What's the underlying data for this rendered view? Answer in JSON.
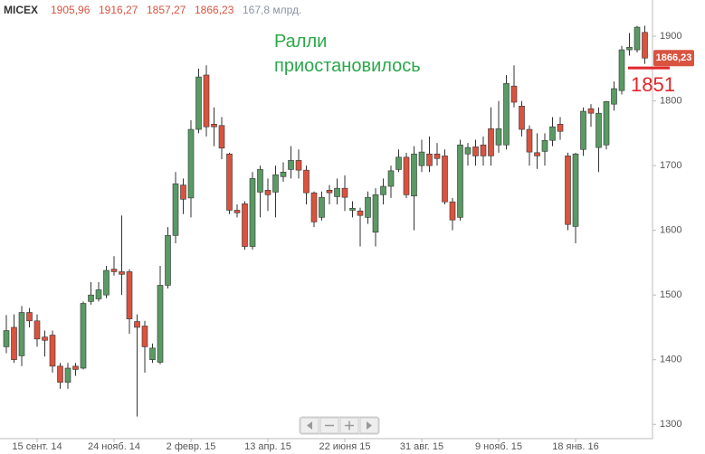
{
  "chart_data": {
    "type": "candlestick",
    "header": {
      "ticker": "MICEX",
      "open": "1905,96",
      "high": "1916,27",
      "low": "1857,27",
      "close": "1866,23",
      "volume": "167,8 млрд."
    },
    "annotation": "Ралли приостановилось",
    "level_line": {
      "value": 1851,
      "color": "#e0262a"
    },
    "last_price": {
      "value": 1866.23,
      "label": "1866,23"
    },
    "up_color": "#5a9a64",
    "down_color": "#d9533f",
    "categories": [
      null,
      null,
      null,
      null,
      "15 сент. 14",
      null,
      null,
      null,
      null,
      null,
      null,
      null,
      null,
      null,
      "24 нояб. 14",
      null,
      null,
      null,
      null,
      null,
      null,
      null,
      null,
      null,
      "2 февр. 15",
      null,
      null,
      null,
      null,
      null,
      null,
      null,
      null,
      null,
      "13 апр. 15",
      null,
      null,
      null,
      null,
      null,
      null,
      null,
      null,
      null,
      "22 июня 15",
      null,
      null,
      null,
      null,
      null,
      null,
      null,
      null,
      null,
      "31 авг. 15",
      null,
      null,
      null,
      null,
      null,
      null,
      null,
      null,
      null,
      "9 нояб. 15",
      null,
      null,
      null,
      null,
      null,
      null,
      null,
      null,
      null,
      "18 янв. 16",
      null,
      null,
      null,
      null,
      null,
      null,
      null,
      null,
      null
    ],
    "open": [
      1420,
      1450,
      1406,
      1473,
      1460,
      1435,
      1438,
      1390,
      1365,
      1390,
      1387,
      1490,
      1494,
      1500,
      1540,
      1536,
      1536,
      1459,
      1452,
      1400,
      1396,
      1515,
      1592,
      1670,
      1650,
      1756,
      1840,
      1764,
      1762,
      1718,
      1631,
      1641,
      1575,
      1659,
      1662,
      1659,
      1683,
      1694,
      1708,
      1693,
      1658,
      1620,
      1662,
      1652,
      1665,
      1631,
      1630,
      1620,
      1597,
      1655,
      1668,
      1694,
      1713,
      1653,
      1700,
      1718,
      1718,
      1715,
      1644,
      1620,
      1718,
      1729,
      1732,
      1757,
      1732,
      1732,
      1823,
      1792,
      1756,
      1720,
      1722,
      1739,
      1764,
      1715,
      1606,
      1725,
      1788,
      1728,
      1732,
      1795,
      1816,
      1879,
      1879,
      1905.96
    ],
    "high": [
      1469,
      1470,
      1483,
      1480,
      1470,
      1445,
      1445,
      1395,
      1395,
      1395,
      1490,
      1520,
      1520,
      1545,
      1560,
      1623,
      1540,
      1470,
      1460,
      1425,
      1545,
      1605,
      1690,
      1680,
      1770,
      1850,
      1855,
      1790,
      1775,
      1720,
      1640,
      1645,
      1690,
      1700,
      1680,
      1700,
      1705,
      1730,
      1725,
      1700,
      1660,
      1660,
      1670,
      1680,
      1685,
      1645,
      1635,
      1660,
      1665,
      1680,
      1700,
      1725,
      1720,
      1730,
      1740,
      1745,
      1735,
      1725,
      1650,
      1740,
      1735,
      1740,
      1745,
      1790,
      1800,
      1840,
      1855,
      1800,
      1762,
      1750,
      1750,
      1775,
      1775,
      1720,
      1720,
      1790,
      1795,
      1790,
      1800,
      1830,
      1885,
      1905,
      1916,
      1916.27
    ],
    "low": [
      1410,
      1395,
      1390,
      1450,
      1420,
      1405,
      1380,
      1355,
      1355,
      1375,
      1385,
      1485,
      1490,
      1495,
      1530,
      1500,
      1440,
      1312,
      1380,
      1395,
      1393,
      1510,
      1580,
      1625,
      1620,
      1750,
      1745,
      1730,
      1710,
      1625,
      1620,
      1570,
      1570,
      1620,
      1630,
      1620,
      1675,
      1680,
      1680,
      1640,
      1605,
      1615,
      1640,
      1640,
      1630,
      1620,
      1575,
      1610,
      1575,
      1640,
      1650,
      1690,
      1650,
      1600,
      1690,
      1690,
      1700,
      1640,
      1600,
      1615,
      1700,
      1700,
      1700,
      1700,
      1720,
      1725,
      1790,
      1745,
      1700,
      1695,
      1700,
      1730,
      1740,
      1600,
      1580,
      1715,
      1760,
      1690,
      1725,
      1785,
      1810,
      1870,
      1875,
      1857.27
    ],
    "close": [
      1445,
      1400,
      1473,
      1460,
      1432,
      1430,
      1390,
      1365,
      1387,
      1385,
      1487,
      1500,
      1508,
      1538,
      1536,
      1532,
      1463,
      1450,
      1420,
      1418,
      1515,
      1592,
      1672,
      1648,
      1756,
      1837,
      1760,
      1760,
      1727,
      1631,
      1627,
      1575,
      1680,
      1694,
      1655,
      1686,
      1690,
      1708,
      1693,
      1658,
      1613,
      1651,
      1658,
      1665,
      1651,
      1634,
      1623,
      1651,
      1655,
      1668,
      1692,
      1713,
      1655,
      1718,
      1721,
      1700,
      1711,
      1644,
      1616,
      1732,
      1728,
      1715,
      1715,
      1715,
      1757,
      1827,
      1798,
      1756,
      1721,
      1715,
      1739,
      1760,
      1753,
      1609,
      1718,
      1784,
      1781,
      1781,
      1799,
      1819,
      1879,
      1883,
      1914,
      1866.23
    ],
    "ylim": [
      1278,
      1956
    ],
    "yticks": [
      1300,
      1400,
      1500,
      1600,
      1700,
      1800,
      1900
    ]
  }
}
